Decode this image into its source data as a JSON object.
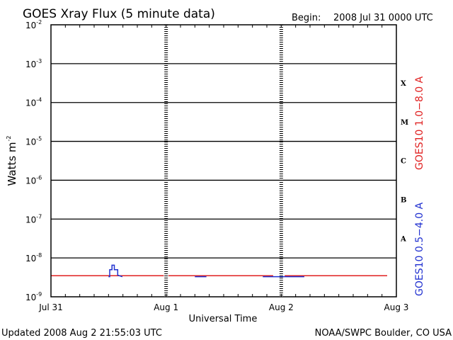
{
  "header": {
    "title": "GOES Xray Flux (5 minute data)",
    "begin_label": "Begin:",
    "begin_value": "2008 Jul 31 0000 UTC"
  },
  "footer": {
    "updated": "Updated 2008 Aug  2 21:55:03 UTC",
    "credit": "NOAA/SWPC Boulder, CO USA"
  },
  "colors": {
    "long_channel": "#e02020",
    "short_channel": "#2030d0",
    "grid": "#000000"
  },
  "chart_data": {
    "type": "line",
    "xlabel": "Universal Time",
    "ylabel": "Watts m",
    "ylabel_sup": "-2",
    "x_days": 3,
    "x_ticks": [
      "Jul 31",
      "Aug 1",
      "Aug 2",
      "Aug 3"
    ],
    "y_scale": "log",
    "ylim": [
      1e-09,
      0.01
    ],
    "y_ticks": [
      {
        "base": "10",
        "exp": "-2"
      },
      {
        "base": "10",
        "exp": "-3"
      },
      {
        "base": "10",
        "exp": "-4"
      },
      {
        "base": "10",
        "exp": "-5"
      },
      {
        "base": "10",
        "exp": "-6"
      },
      {
        "base": "10",
        "exp": "-7"
      },
      {
        "base": "10",
        "exp": "-8"
      },
      {
        "base": "10",
        "exp": "-9"
      }
    ],
    "flare_classes": [
      {
        "label": "X",
        "value": 0.00032
      },
      {
        "label": "M",
        "value": 3.2e-05
      },
      {
        "label": "C",
        "value": 3.2e-06
      },
      {
        "label": "B",
        "value": 3.2e-07
      },
      {
        "label": "A",
        "value": 3.2e-08
      }
    ],
    "grid": true,
    "series": [
      {
        "name": "GOES10 1.0−8.0 A",
        "color": "#e02020",
        "segments": [
          {
            "x": [
              0.0,
              0.98
            ],
            "y": [
              3.5e-09,
              3.5e-09
            ]
          },
          {
            "x": [
              1.02,
              1.93
            ],
            "y": [
              3.5e-09,
              3.5e-09
            ]
          },
          {
            "x": [
              2.03,
              2.92
            ],
            "y": [
              3.5e-09,
              3.5e-09
            ]
          }
        ]
      },
      {
        "name": "GOES10 0.5−4.0 A",
        "color": "#2030d0",
        "segments": [
          {
            "x": [
              0.5,
              0.51,
              0.51,
              0.53,
              0.53,
              0.55,
              0.55,
              0.58,
              0.58,
              0.62
            ],
            "y": [
              3.3e-09,
              3.3e-09,
              5e-09,
              5e-09,
              6.5e-09,
              6.5e-09,
              5e-09,
              5e-09,
              3.6e-09,
              3.3e-09
            ]
          },
          {
            "x": [
              1.25,
              1.35
            ],
            "y": [
              3.3e-09,
              3.3e-09
            ]
          },
          {
            "x": [
              1.84,
              2.2
            ],
            "y": [
              3.3e-09,
              3.3e-09
            ]
          }
        ]
      }
    ]
  }
}
